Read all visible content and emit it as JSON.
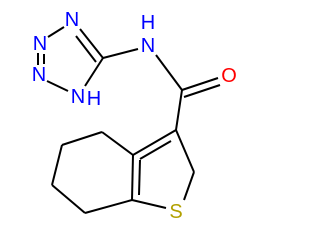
{
  "atoms": [
    {
      "label": "N"
    },
    {
      "label": "N"
    },
    {
      "label": "N"
    },
    {
      "label": "N"
    },
    {
      "label": "H"
    },
    {
      "label": "N"
    },
    {
      "label": "H"
    },
    {
      "label": "O"
    },
    {
      "label": "S"
    }
  ]
}
